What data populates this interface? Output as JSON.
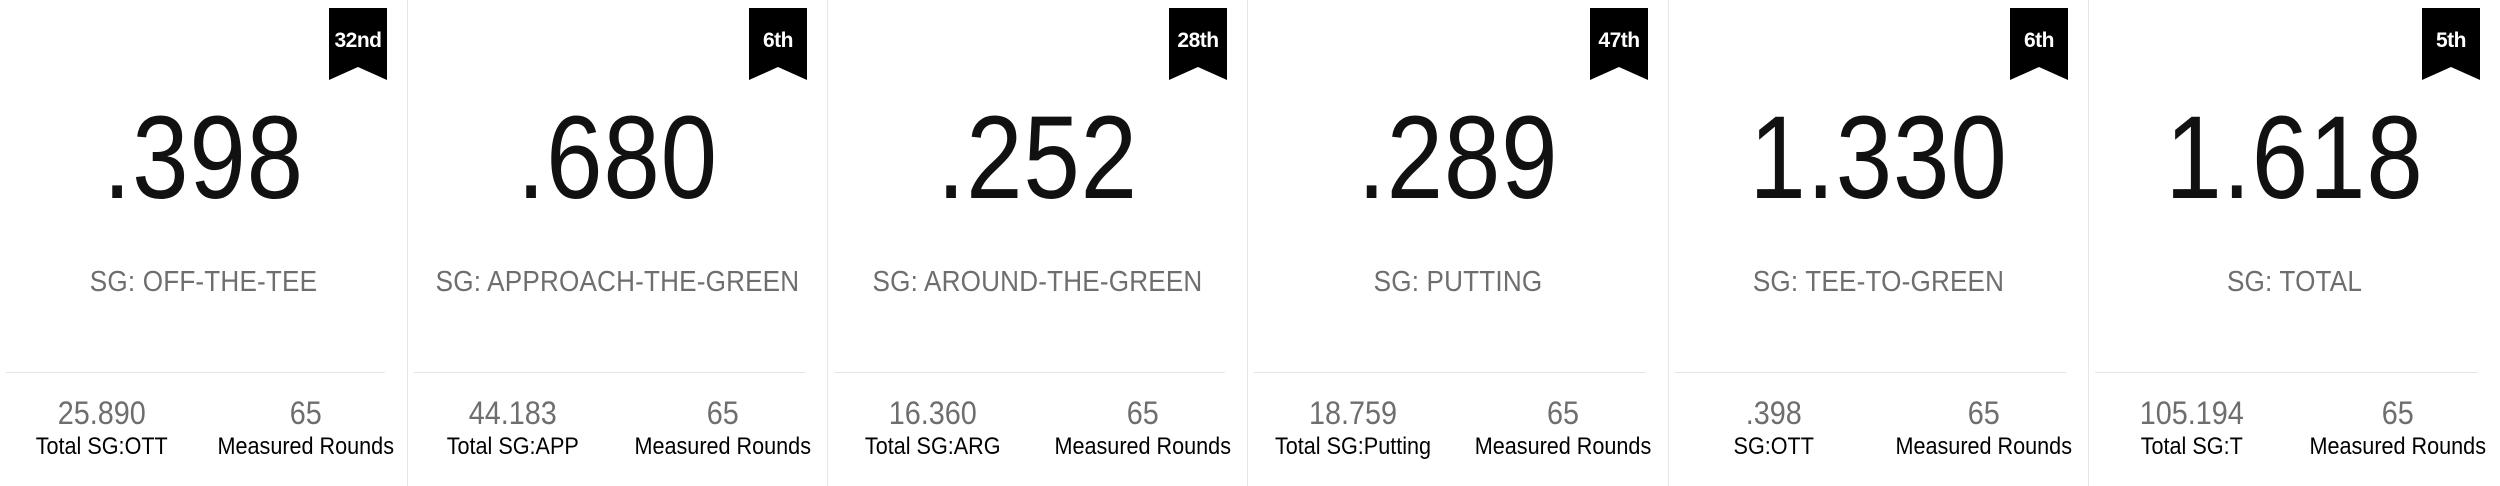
{
  "cards": [
    {
      "rank": "32nd",
      "value": ".398",
      "label": "SG: OFF-THE-TEE",
      "total_value": "25.890",
      "total_caption": "Total SG:OTT",
      "rounds_value": "65",
      "rounds_caption": "Measured Rounds"
    },
    {
      "rank": "6th",
      "value": ".680",
      "label": "SG: APPROACH-THE-GREEN",
      "total_value": "44.183",
      "total_caption": "Total SG:APP",
      "rounds_value": "65",
      "rounds_caption": "Measured Rounds"
    },
    {
      "rank": "28th",
      "value": ".252",
      "label": "SG: AROUND-THE-GREEN",
      "total_value": "16.360",
      "total_caption": "Total SG:ARG",
      "rounds_value": "65",
      "rounds_caption": "Measured Rounds"
    },
    {
      "rank": "47th",
      "value": ".289",
      "label": "SG: PUTTING",
      "total_value": "18.759",
      "total_caption": "Total SG:Putting",
      "rounds_value": "65",
      "rounds_caption": "Measured Rounds"
    },
    {
      "rank": "6th",
      "value": "1.330",
      "label": "SG: TEE-TO-GREEN",
      "total_value": ".398",
      "total_caption": "SG:OTT",
      "rounds_value": "65",
      "rounds_caption": "Measured Rounds"
    },
    {
      "rank": "5th",
      "value": "1.618",
      "label": "SG: TOTAL",
      "total_value": "105.194",
      "total_caption": "Total SG:T",
      "rounds_value": "65",
      "rounds_caption": "Measured Rounds"
    }
  ]
}
